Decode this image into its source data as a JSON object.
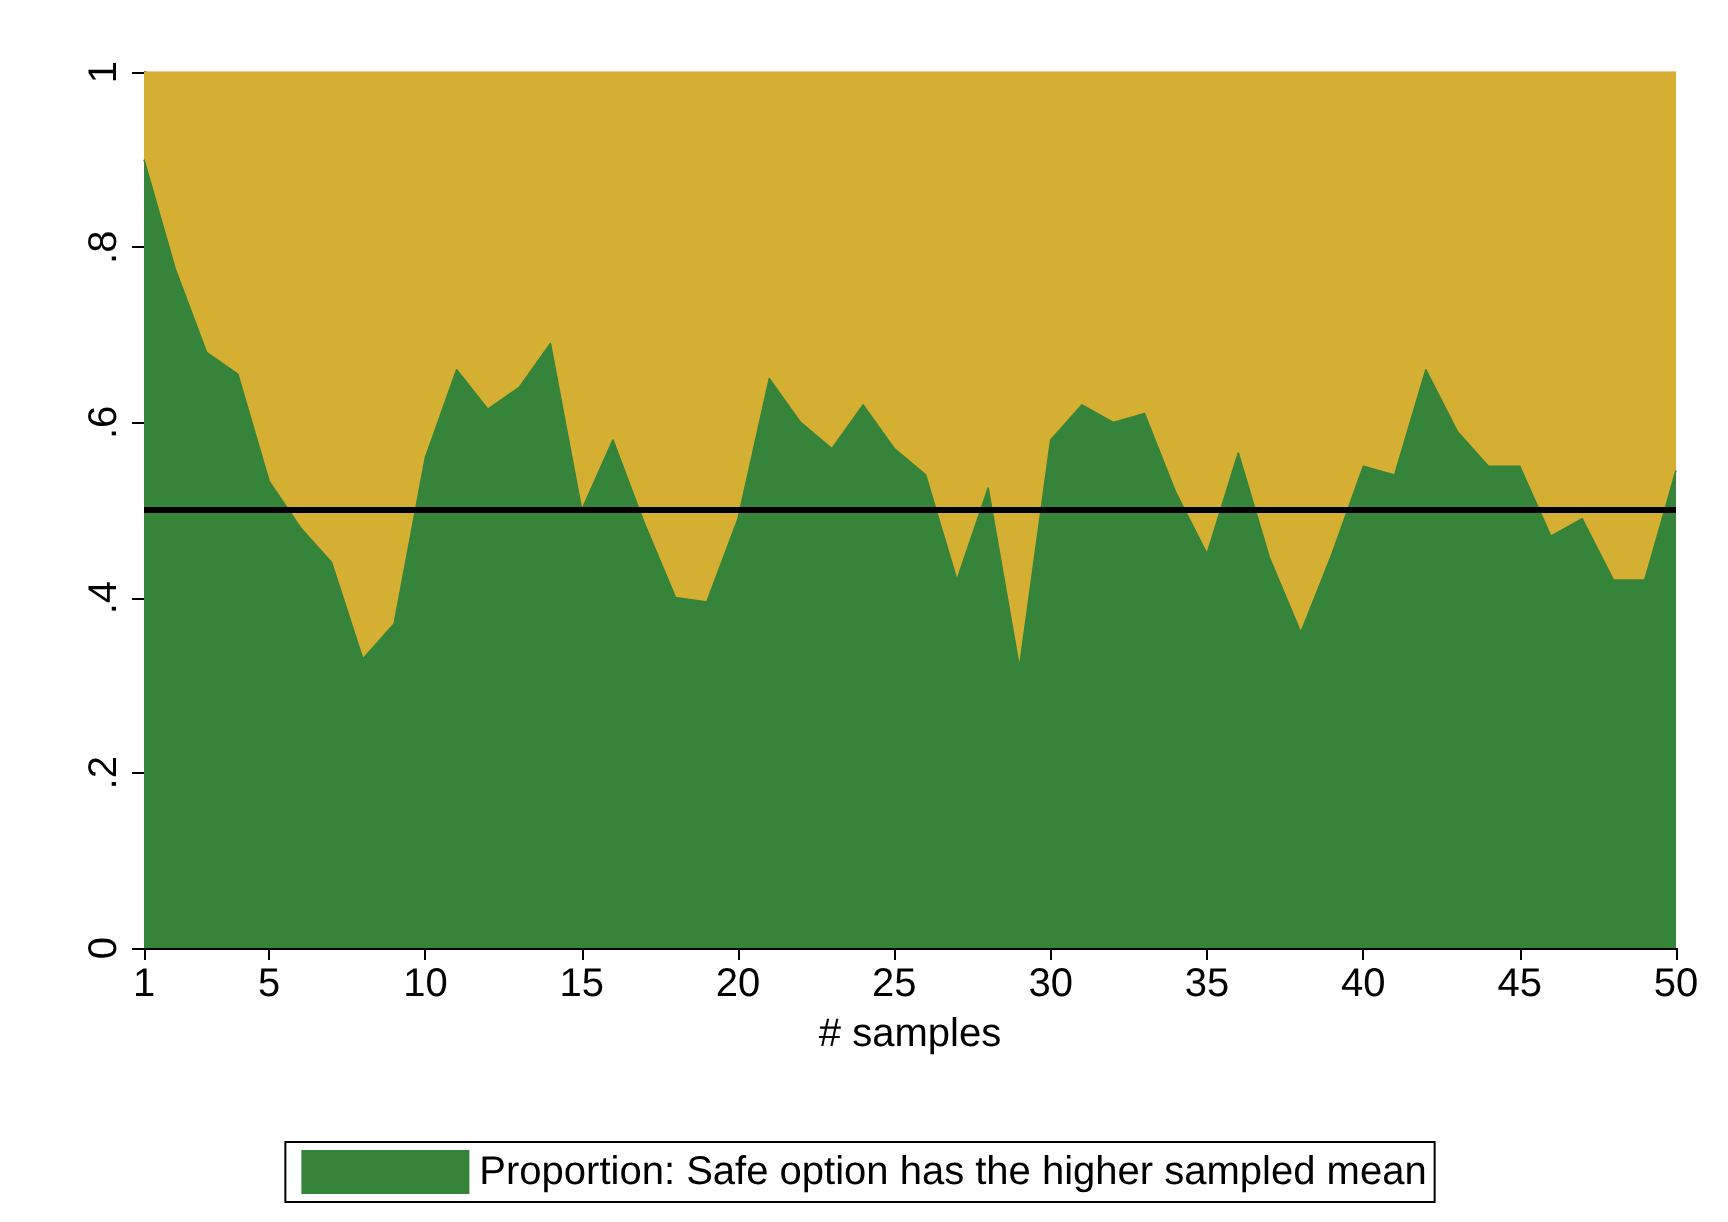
{
  "chart_data": {
    "type": "area",
    "stacked": true,
    "xlabel": "# samples",
    "x": [
      1,
      2,
      3,
      4,
      5,
      6,
      7,
      8,
      9,
      10,
      11,
      12,
      13,
      14,
      15,
      16,
      17,
      18,
      19,
      20,
      21,
      22,
      23,
      24,
      25,
      26,
      27,
      28,
      29,
      30,
      31,
      32,
      33,
      34,
      35,
      36,
      37,
      38,
      39,
      40,
      41,
      42,
      43,
      44,
      45,
      46,
      47,
      48,
      49,
      50
    ],
    "series": [
      {
        "name": "Proportion: Safe option has the higher sampled mean",
        "color": "#35843a",
        "values": [
          0.9,
          0.775,
          0.68,
          0.655,
          0.533,
          0.48,
          0.44,
          0.33,
          0.37,
          0.56,
          0.66,
          0.615,
          0.64,
          0.69,
          0.5,
          0.58,
          0.485,
          0.4,
          0.395,
          0.49,
          0.65,
          0.6,
          0.57,
          0.62,
          0.57,
          0.54,
          0.42,
          0.525,
          0.32,
          0.58,
          0.62,
          0.6,
          0.61,
          0.52,
          0.45,
          0.565,
          0.445,
          0.36,
          0.45,
          0.55,
          0.54,
          0.66,
          0.59,
          0.55,
          0.55,
          0.47,
          0.49,
          0.42,
          0.42,
          0.545
        ]
      },
      {
        "color": "#d5af32",
        "values": [
          0.1,
          0.225,
          0.32,
          0.345,
          0.467,
          0.52,
          0.56,
          0.67,
          0.63,
          0.44,
          0.34,
          0.385,
          0.36,
          0.31,
          0.5,
          0.42,
          0.515,
          0.6,
          0.605,
          0.51,
          0.35,
          0.4,
          0.43,
          0.38,
          0.43,
          0.46,
          0.58,
          0.475,
          0.68,
          0.42,
          0.38,
          0.4,
          0.39,
          0.48,
          0.55,
          0.435,
          0.555,
          0.64,
          0.55,
          0.45,
          0.46,
          0.34,
          0.41,
          0.45,
          0.45,
          0.53,
          0.51,
          0.58,
          0.58,
          0.455
        ]
      }
    ],
    "xlim": [
      1,
      50
    ],
    "xticks": [
      1,
      5,
      10,
      15,
      20,
      25,
      30,
      35,
      40,
      45,
      50
    ],
    "ylim": [
      0,
      1
    ],
    "yticks": [
      0,
      {
        "value": 0.2,
        "label": ".2"
      },
      {
        "value": 0.4,
        "label": ".4"
      },
      {
        "value": 0.6,
        "label": ".6"
      },
      {
        "value": 0.8,
        "label": ".8"
      },
      1
    ],
    "ref_lines": [
      {
        "axis": "y",
        "value": 0.5,
        "color": "#000000",
        "line_style": "solid"
      }
    ],
    "legend": "bottom"
  }
}
